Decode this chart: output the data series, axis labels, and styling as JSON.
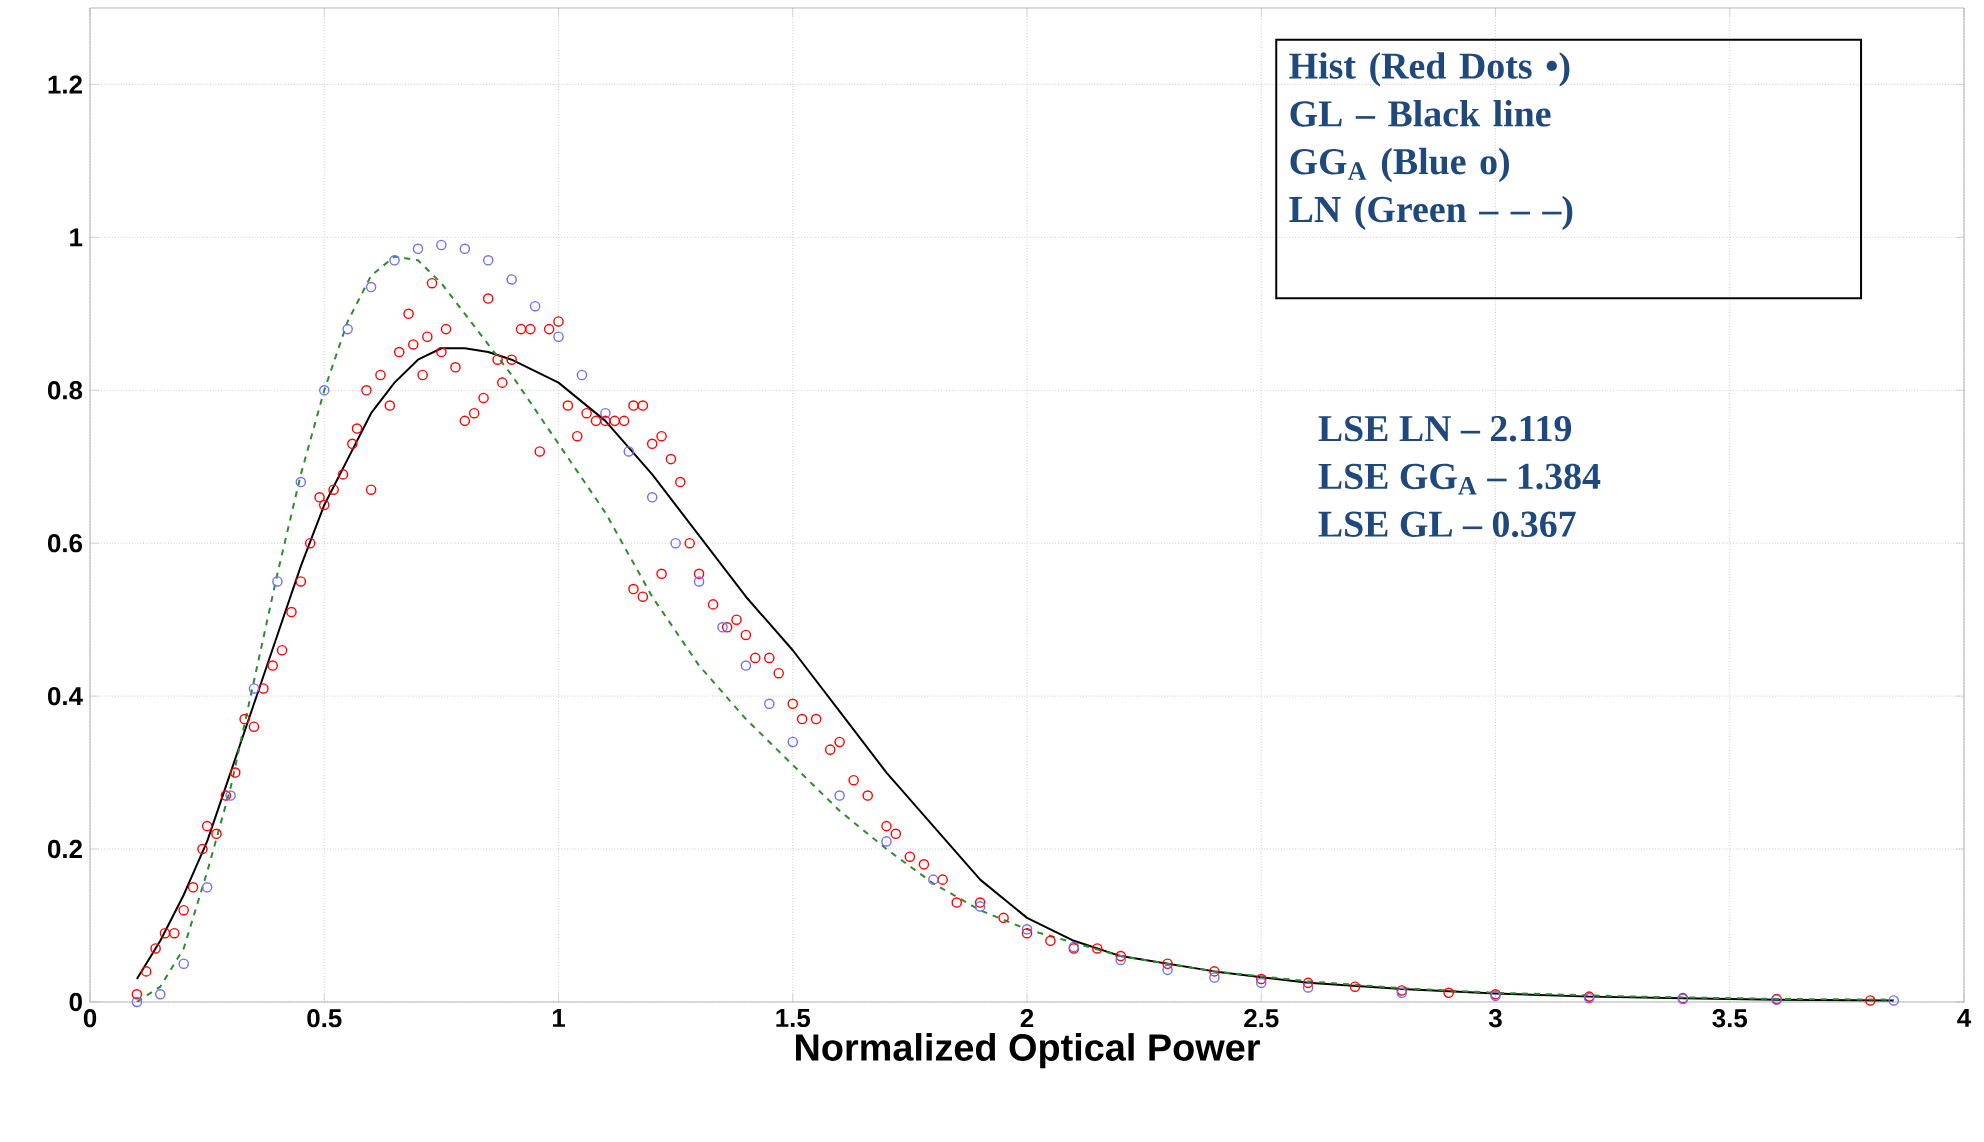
{
  "chart_data": {
    "type": "scatter",
    "xlabel": "Normalized Optical Power",
    "xlim": [
      0,
      4
    ],
    "ylim": [
      0,
      1.3
    ],
    "xticks": [
      0,
      0.5,
      1,
      1.5,
      2,
      2.5,
      3,
      3.5,
      4
    ],
    "yticks": [
      0,
      0.2,
      0.4,
      0.6,
      0.8,
      1,
      1.2
    ],
    "grid": true,
    "annotations": [
      "Hist (Red Dots •)",
      "GL – Black line",
      "GG$_{A}$ (Blue o)",
      "LN (Green – – –)",
      "LSE LN – 2.119",
      "LSE GG$_{A}$ – 1.384",
      "LSE GL – 0.367"
    ],
    "series": [
      {
        "type": "scatter",
        "color": "#ff0000",
        "marker": "circle",
        "x": [
          0.1,
          0.12,
          0.14,
          0.16,
          0.18,
          0.2,
          0.22,
          0.24,
          0.25,
          0.27,
          0.29,
          0.31,
          0.33,
          0.35,
          0.37,
          0.39,
          0.41,
          0.43,
          0.45,
          0.47,
          0.49,
          0.5,
          0.52,
          0.54,
          0.56,
          0.57,
          0.59,
          0.6,
          0.62,
          0.64,
          0.66,
          0.68,
          0.69,
          0.71,
          0.72,
          0.73,
          0.75,
          0.76,
          0.78,
          0.8,
          0.82,
          0.84,
          0.85,
          0.87,
          0.88,
          0.9,
          0.92,
          0.94,
          0.96,
          0.98,
          1.0,
          1.02,
          1.04,
          1.06,
          1.08,
          1.1,
          1.12,
          1.14,
          1.16,
          1.18,
          1.2,
          1.22,
          1.24,
          1.26,
          1.16,
          1.18,
          1.22,
          1.28,
          1.3,
          1.33,
          1.36,
          1.38,
          1.4,
          1.42,
          1.45,
          1.47,
          1.5,
          1.52,
          1.55,
          1.58,
          1.6,
          1.63,
          1.66,
          1.7,
          1.72,
          1.75,
          1.78,
          1.82,
          1.85,
          1.9,
          1.95,
          2.0,
          2.05,
          2.1,
          2.15,
          2.2,
          2.3,
          2.4,
          2.5,
          2.6,
          2.7,
          2.8,
          2.9,
          3.0,
          3.2,
          3.4,
          3.6,
          3.8
        ],
        "values": [
          0.01,
          0.04,
          0.07,
          0.09,
          0.09,
          0.12,
          0.15,
          0.2,
          0.23,
          0.22,
          0.27,
          0.3,
          0.37,
          0.36,
          0.41,
          0.44,
          0.46,
          0.51,
          0.55,
          0.6,
          0.66,
          0.65,
          0.67,
          0.69,
          0.73,
          0.75,
          0.8,
          0.67,
          0.82,
          0.78,
          0.85,
          0.9,
          0.86,
          0.82,
          0.87,
          0.94,
          0.85,
          0.88,
          0.83,
          0.76,
          0.77,
          0.79,
          0.92,
          0.84,
          0.81,
          0.84,
          0.88,
          0.88,
          0.72,
          0.88,
          0.89,
          0.78,
          0.74,
          0.77,
          0.76,
          0.76,
          0.76,
          0.76,
          0.78,
          0.78,
          0.73,
          0.74,
          0.71,
          0.68,
          0.54,
          0.53,
          0.56,
          0.6,
          0.56,
          0.52,
          0.49,
          0.5,
          0.48,
          0.45,
          0.45,
          0.43,
          0.39,
          0.37,
          0.37,
          0.33,
          0.34,
          0.29,
          0.27,
          0.23,
          0.22,
          0.19,
          0.18,
          0.16,
          0.13,
          0.13,
          0.11,
          0.09,
          0.08,
          0.07,
          0.07,
          0.06,
          0.05,
          0.04,
          0.03,
          0.025,
          0.02,
          0.015,
          0.012,
          0.01,
          0.007,
          0.005,
          0.004,
          0.002
        ]
      },
      {
        "type": "line",
        "color": "#000000",
        "line_style": "solid",
        "x": [
          0.1,
          0.15,
          0.2,
          0.25,
          0.3,
          0.35,
          0.4,
          0.45,
          0.5,
          0.55,
          0.6,
          0.65,
          0.7,
          0.75,
          0.8,
          0.85,
          0.9,
          0.95,
          1.0,
          1.1,
          1.2,
          1.3,
          1.4,
          1.5,
          1.6,
          1.7,
          1.8,
          1.9,
          2.0,
          2.1,
          2.2,
          2.4,
          2.6,
          2.8,
          3.0,
          3.2,
          3.4,
          3.6,
          3.85
        ],
        "values": [
          0.03,
          0.08,
          0.14,
          0.21,
          0.3,
          0.39,
          0.48,
          0.57,
          0.65,
          0.71,
          0.77,
          0.81,
          0.84,
          0.855,
          0.855,
          0.85,
          0.84,
          0.825,
          0.81,
          0.76,
          0.69,
          0.61,
          0.53,
          0.46,
          0.38,
          0.3,
          0.23,
          0.16,
          0.11,
          0.08,
          0.06,
          0.04,
          0.025,
          0.017,
          0.011,
          0.007,
          0.005,
          0.003,
          0.002
        ]
      },
      {
        "type": "scatter",
        "color": "#6f6fff",
        "marker": "circle",
        "x": [
          0.1,
          0.15,
          0.2,
          0.25,
          0.3,
          0.35,
          0.4,
          0.45,
          0.5,
          0.55,
          0.6,
          0.65,
          0.7,
          0.75,
          0.8,
          0.85,
          0.9,
          0.95,
          1.0,
          1.05,
          1.1,
          1.15,
          1.2,
          1.25,
          1.3,
          1.35,
          1.4,
          1.45,
          1.5,
          1.6,
          1.7,
          1.8,
          1.9,
          2.0,
          2.1,
          2.2,
          2.3,
          2.4,
          2.5,
          2.6,
          2.8,
          3.0,
          3.2,
          3.4,
          3.6,
          3.85
        ],
        "values": [
          0.0,
          0.01,
          0.05,
          0.15,
          0.27,
          0.41,
          0.55,
          0.68,
          0.8,
          0.88,
          0.935,
          0.97,
          0.985,
          0.99,
          0.985,
          0.97,
          0.945,
          0.91,
          0.87,
          0.82,
          0.77,
          0.72,
          0.66,
          0.6,
          0.55,
          0.49,
          0.44,
          0.39,
          0.34,
          0.27,
          0.21,
          0.16,
          0.125,
          0.095,
          0.072,
          0.055,
          0.042,
          0.032,
          0.025,
          0.019,
          0.012,
          0.008,
          0.005,
          0.004,
          0.003,
          0.002
        ]
      },
      {
        "type": "line",
        "color": "#2e8b2e",
        "line_style": "dashed",
        "x": [
          0.1,
          0.15,
          0.2,
          0.25,
          0.3,
          0.35,
          0.4,
          0.45,
          0.5,
          0.55,
          0.6,
          0.65,
          0.7,
          0.75,
          0.8,
          0.9,
          1.0,
          1.1,
          1.2,
          1.3,
          1.4,
          1.5,
          1.6,
          1.7,
          1.8,
          1.9,
          2.0,
          2.2,
          2.4,
          2.6,
          2.8,
          3.0,
          3.3,
          3.6,
          3.85
        ],
        "values": [
          0.0,
          0.02,
          0.07,
          0.17,
          0.28,
          0.42,
          0.56,
          0.69,
          0.8,
          0.89,
          0.95,
          0.975,
          0.97,
          0.94,
          0.9,
          0.82,
          0.73,
          0.64,
          0.53,
          0.44,
          0.37,
          0.31,
          0.25,
          0.2,
          0.155,
          0.12,
          0.095,
          0.06,
          0.04,
          0.027,
          0.018,
          0.012,
          0.007,
          0.004,
          0.003
        ]
      }
    ]
  }
}
